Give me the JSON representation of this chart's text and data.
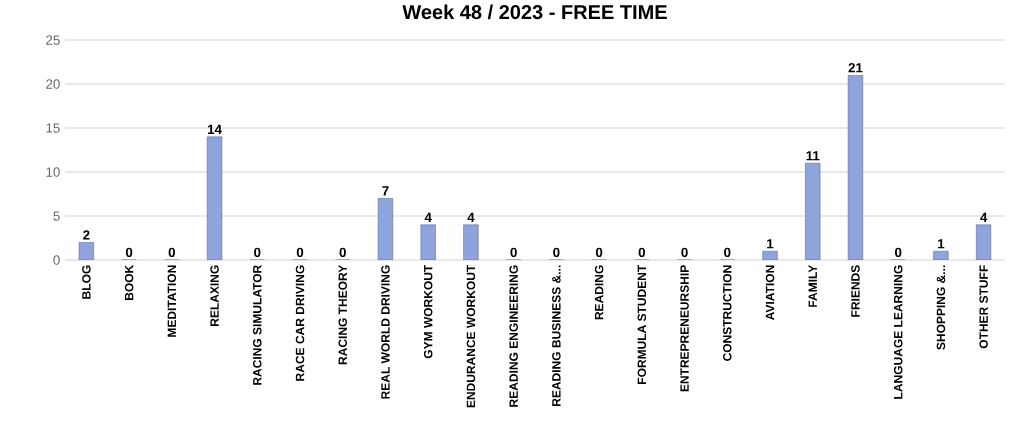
{
  "chart_data": {
    "type": "bar",
    "title": "Week 48 / 2023 - FREE TIME",
    "categories": [
      "BLOG",
      "BOOK",
      "MEDITATION",
      "RELAXING",
      "RACING SIMULATOR",
      "RACE CAR DRIVING",
      "RACING THEORY",
      "REAL WORLD DRIVING",
      "GYM WORKOUT",
      "ENDURANCE WORKOUT",
      "READING ENGINEERING",
      "READING BUSINESS &...",
      "READING",
      "FORMULA STUDENT",
      "ENTREPRENEURSHIP",
      "CONSTRUCTION",
      "AVIATION",
      "FAMILY",
      "FRIENDS",
      "LANGUAGE LEARNING",
      "SHOPPING &...",
      "OTHER STUFF"
    ],
    "values": [
      2,
      0,
      0,
      14,
      0,
      0,
      0,
      7,
      4,
      4,
      0,
      0,
      0,
      0,
      0,
      0,
      1,
      11,
      21,
      0,
      1,
      4
    ],
    "color": "#8fa3dc",
    "ylim": [
      0,
      25
    ],
    "yticks": [
      0,
      5,
      10,
      15,
      20,
      25
    ],
    "grid": "y",
    "data_labels": true
  }
}
